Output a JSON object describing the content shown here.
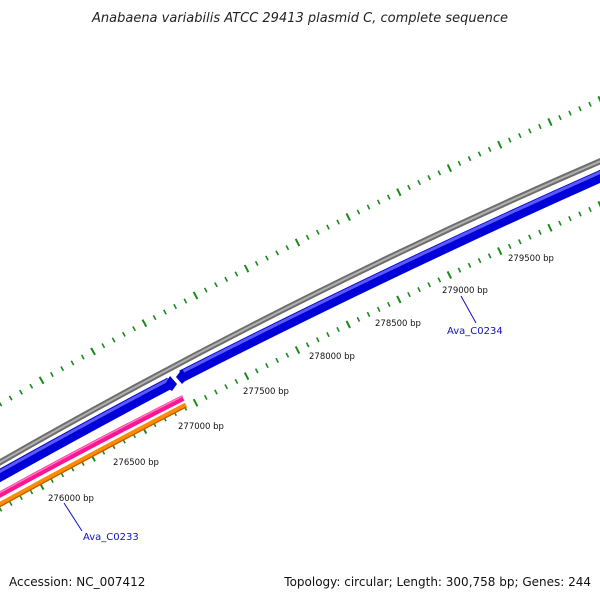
{
  "title": "Anabaena variabilis ATCC 29413 plasmid C, complete sequence",
  "footer": {
    "accession": "Accession: NC_007412",
    "summary": "Topology: circular; Length: 300,758 bp; Genes: 244"
  },
  "ticks": [
    {
      "label": "276000 bp"
    },
    {
      "label": "276500 bp"
    },
    {
      "label": "277000 bp"
    },
    {
      "label": "277500 bp"
    },
    {
      "label": "278000 bp"
    },
    {
      "label": "278500 bp"
    },
    {
      "label": "279000 bp"
    },
    {
      "label": "279500 bp"
    }
  ],
  "genes": [
    {
      "label": "Ava_C0233"
    },
    {
      "label": "Ava_C0234"
    }
  ],
  "colors": {
    "backbone": "#8a8a8a",
    "cds": "#0000e0",
    "gene_pink": "#ff1493",
    "gene_orange": "#ff8c00",
    "ticks": "#1a8a1a",
    "gene_label": "#1010c0"
  }
}
